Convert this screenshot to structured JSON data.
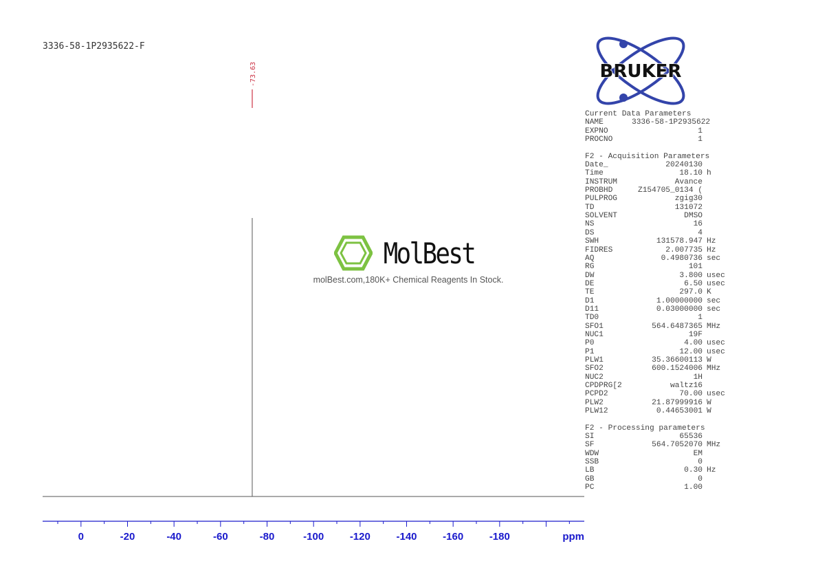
{
  "title": "3336-58-1P2935622-F",
  "chart_data": {
    "type": "line",
    "xlabel": "ppm",
    "xlim": [
      16.5,
      -216.4
    ],
    "x_ticks_major": [
      0,
      -20,
      -40,
      -60,
      -80,
      -100,
      -120,
      -140,
      -160,
      -180
    ],
    "x_tick_labels": [
      "0",
      "-20",
      "-40",
      "-60",
      "-80",
      "-100",
      "-120",
      "-140",
      "-160",
      "-180"
    ],
    "x_minor_step": 10,
    "grid": false,
    "peaks": [
      {
        "ppm": -73.63,
        "label": "-73.63",
        "relative_intensity": 1.0
      }
    ],
    "colors": {
      "axis": "#1a1acc",
      "spectrum": "#555555",
      "peak_label": "#cc3344"
    }
  },
  "brand": {
    "logo": "BRUKER",
    "logo_color": "#3344aa"
  },
  "watermark": {
    "name": "MolBest",
    "tagline": "molBest.com,180K+ Chemical Reagents In Stock.",
    "color": "#7dc242"
  },
  "params": {
    "current_header": "Current Data Parameters",
    "current": [
      [
        "NAME",
        "3336-58-1P2935622",
        ""
      ],
      [
        "EXPNO",
        "1",
        ""
      ],
      [
        "PROCNO",
        "1",
        ""
      ]
    ],
    "acq_header": "F2 - Acquisition Parameters",
    "acq": [
      [
        "Date_",
        "20240130",
        ""
      ],
      [
        "Time",
        "18.10",
        "h"
      ],
      [
        "INSTRUM",
        "Avance",
        ""
      ],
      [
        "PROBHD",
        "Z154705_0134 (",
        ""
      ],
      [
        "PULPROG",
        "zgig30",
        ""
      ],
      [
        "TD",
        "131072",
        ""
      ],
      [
        "SOLVENT",
        "DMSO",
        ""
      ],
      [
        "NS",
        "16",
        ""
      ],
      [
        "DS",
        "4",
        ""
      ],
      [
        "SWH",
        "131578.947",
        "Hz"
      ],
      [
        "FIDRES",
        "2.007735",
        "Hz"
      ],
      [
        "AQ",
        "0.4980736",
        "sec"
      ],
      [
        "RG",
        "101",
        ""
      ],
      [
        "DW",
        "3.800",
        "usec"
      ],
      [
        "DE",
        "6.50",
        "usec"
      ],
      [
        "TE",
        "297.0",
        "K"
      ],
      [
        "D1",
        "1.00000000",
        "sec"
      ],
      [
        "D11",
        "0.03000000",
        "sec"
      ],
      [
        "TD0",
        "1",
        ""
      ],
      [
        "SFO1",
        "564.6487365",
        "MHz"
      ],
      [
        "NUC1",
        "19F",
        ""
      ],
      [
        "P0",
        "4.00",
        "usec"
      ],
      [
        "P1",
        "12.00",
        "usec"
      ],
      [
        "PLW1",
        "35.36600113",
        "W"
      ],
      [
        "SFO2",
        "600.1524006",
        "MHz"
      ],
      [
        "NUC2",
        "1H",
        ""
      ],
      [
        "CPDPRG[2",
        "waltz16",
        ""
      ],
      [
        "PCPD2",
        "70.00",
        "usec"
      ],
      [
        "PLW2",
        "21.87999916",
        "W"
      ],
      [
        "PLW12",
        "0.44653001",
        "W"
      ]
    ],
    "proc_header": "F2 - Processing parameters",
    "proc": [
      [
        "SI",
        "65536",
        ""
      ],
      [
        "SF",
        "564.7052070",
        "MHz"
      ],
      [
        "WDW",
        "EM",
        ""
      ],
      [
        "SSB",
        "0",
        ""
      ],
      [
        "LB",
        "0.30",
        "Hz"
      ],
      [
        "GB",
        "0",
        ""
      ],
      [
        "PC",
        "1.00",
        ""
      ]
    ]
  }
}
